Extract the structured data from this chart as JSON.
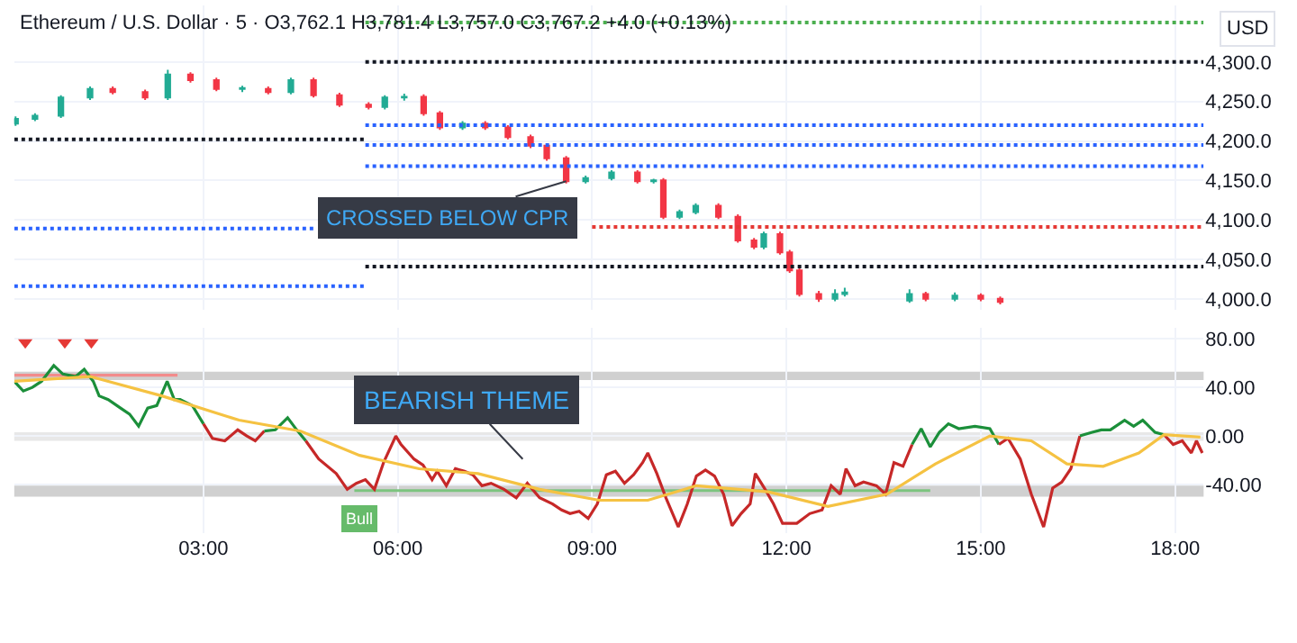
{
  "chart_data": [
    {
      "type": "candlestick",
      "title": "Ethereum / U.S. Dollar · 5 · O3,762.1 H3,781.4 L3,757.0 C3,767.2 +4.0 (+0.13%)",
      "ylabel": "USD",
      "x": [
        0.1,
        0.4,
        0.8,
        1.25,
        1.6,
        2.1,
        2.45,
        2.8,
        3.2,
        3.6,
        4.0,
        4.35,
        4.7,
        5.1,
        5.55,
        5.8,
        6.1,
        6.4,
        6.65,
        7.0,
        7.35,
        7.7,
        8.05,
        8.3,
        8.6,
        8.9,
        9.3,
        9.7,
        9.95,
        10.1,
        10.35,
        10.6,
        10.95,
        11.25,
        11.5,
        11.65,
        11.9,
        12.05,
        12.2,
        12.5,
        12.75,
        12.9,
        13.9,
        14.15,
        14.6,
        15.0,
        15.3
      ],
      "ohlc": [
        [
          4222,
          4231,
          4219,
          4228
        ],
        [
          4228,
          4235,
          4225,
          4232
        ],
        [
          4232,
          4258,
          4229,
          4255
        ],
        [
          4255,
          4269,
          4252,
          4266
        ],
        [
          4266,
          4269,
          4259,
          4262
        ],
        [
          4262,
          4265,
          4252,
          4255
        ],
        [
          4255,
          4290,
          4252,
          4284
        ],
        [
          4284,
          4287,
          4274,
          4277
        ],
        [
          4277,
          4280,
          4263,
          4266
        ],
        [
          4266,
          4270,
          4262,
          4267
        ],
        [
          4266,
          4269,
          4259,
          4262
        ],
        [
          4262,
          4280,
          4259,
          4277
        ],
        [
          4277,
          4280,
          4255,
          4258
        ],
        [
          4258,
          4261,
          4243,
          4246
        ],
        [
          4246,
          4249,
          4240,
          4243
        ],
        [
          4243,
          4258,
          4240,
          4255
        ],
        [
          4255,
          4260,
          4251,
          4256
        ],
        [
          4256,
          4259,
          4232,
          4235
        ],
        [
          4235,
          4238,
          4214,
          4217
        ],
        [
          4217,
          4225,
          4214,
          4222
        ],
        [
          4222,
          4225,
          4214,
          4217
        ],
        [
          4217,
          4220,
          4202,
          4205
        ],
        [
          4205,
          4208,
          4191,
          4194
        ],
        [
          4194,
          4197,
          4175,
          4178
        ],
        [
          4178,
          4181,
          4146,
          4149
        ],
        [
          4149,
          4156,
          4146,
          4153
        ],
        [
          4153,
          4163,
          4150,
          4160
        ],
        [
          4160,
          4163,
          4146,
          4149
        ],
        [
          4149,
          4152,
          4146,
          4150
        ],
        [
          4150,
          4153,
          4101,
          4104
        ],
        [
          4104,
          4113,
          4101,
          4110
        ],
        [
          4110,
          4121,
          4107,
          4118
        ],
        [
          4118,
          4121,
          4101,
          4104
        ],
        [
          4104,
          4107,
          4071,
          4074
        ],
        [
          4074,
          4077,
          4063,
          4066
        ],
        [
          4066,
          4085,
          4063,
          4082
        ],
        [
          4082,
          4085,
          4056,
          4059
        ],
        [
          4059,
          4062,
          4033,
          4036
        ],
        [
          4036,
          4039,
          4003,
          4006
        ],
        [
          4006,
          4010,
          3996,
          4000
        ],
        [
          4000,
          4012,
          3997,
          4006
        ],
        [
          4006,
          4014,
          4003,
          4008
        ],
        [
          3998,
          4012,
          3995,
          4006
        ],
        [
          4006,
          4009,
          3997,
          4000
        ],
        [
          4000,
          4008,
          3997,
          4004
        ],
        [
          4004,
          4007,
          3997,
          4000
        ],
        [
          4000,
          4003,
          3993,
          3996
        ]
      ],
      "colors": [
        "#22ab94",
        "#22ab94",
        "#22ab94",
        "#22ab94",
        "#f23645",
        "#f23645",
        "#22ab94",
        "#f23645",
        "#f23645",
        "#22ab94",
        "#f23645",
        "#22ab94",
        "#f23645",
        "#f23645",
        "#f23645",
        "#22ab94",
        "#22ab94",
        "#f23645",
        "#f23645",
        "#22ab94",
        "#f23645",
        "#f23645",
        "#f23645",
        "#f23645",
        "#f23645",
        "#22ab94",
        "#22ab94",
        "#f23645",
        "#22ab94",
        "#f23645",
        "#22ab94",
        "#22ab94",
        "#f23645",
        "#f23645",
        "#f23645",
        "#22ab94",
        "#f23645",
        "#f23645",
        "#f23645",
        "#f23645",
        "#22ab94",
        "#22ab94",
        "#22ab94",
        "#f23645",
        "#22ab94",
        "#f23645",
        "#f23645"
      ],
      "series": [
        {
          "type": "line",
          "color": "#131722",
          "x": [
            0.08,
            5.5
          ],
          "values": [
            4202,
            4202
          ],
          "line_style": "dotted"
        },
        {
          "type": "line",
          "color": "#2962ff",
          "x": [
            0.08,
            4.7
          ],
          "values": [
            4089,
            4089
          ],
          "line_style": "dotted"
        },
        {
          "type": "line",
          "color": "#2962ff",
          "x": [
            0.08,
            5.5
          ],
          "values": [
            4016,
            4016
          ],
          "line_style": "dotted"
        },
        {
          "type": "line",
          "color": "#4caf50",
          "x": [
            5.5,
            18.44
          ],
          "values": [
            4350,
            4350
          ],
          "line_style": "dotted"
        },
        {
          "type": "line",
          "color": "#131722",
          "x": [
            5.5,
            18.44
          ],
          "values": [
            4300,
            4300
          ],
          "line_style": "dotted"
        },
        {
          "type": "line",
          "color": "#2962ff",
          "x": [
            5.5,
            18.44
          ],
          "values": [
            4220,
            4220
          ],
          "line_style": "dotted"
        },
        {
          "type": "line",
          "color": "#2962ff",
          "x": [
            5.5,
            18.44
          ],
          "values": [
            4195,
            4195
          ],
          "line_style": "dotted"
        },
        {
          "type": "line",
          "color": "#2962ff",
          "x": [
            5.5,
            18.44
          ],
          "values": [
            4168,
            4168
          ],
          "line_style": "dotted"
        },
        {
          "type": "line",
          "color": "#e53935",
          "x": [
            9.0,
            18.44
          ],
          "values": [
            4091,
            4091
          ],
          "line_style": "dotted"
        },
        {
          "type": "line",
          "color": "#131722",
          "x": [
            5.5,
            18.44
          ],
          "values": [
            4041,
            4041
          ],
          "line_style": "dotted"
        }
      ],
      "annotations": [
        {
          "text": "CROSSED BELOW CPR",
          "x": 8.6,
          "y": 4149
        }
      ],
      "xlim": [
        0.08,
        18.44
      ],
      "xticks": [
        {
          "value": 3,
          "label": null
        },
        {
          "value": 6,
          "label": null
        },
        {
          "value": 9,
          "label": null
        },
        {
          "value": 12,
          "label": null
        },
        {
          "value": 15,
          "label": null
        },
        {
          "value": 18,
          "label": null
        }
      ],
      "ylim": [
        3986,
        4372
      ],
      "yticks": [
        {
          "value": 4000,
          "label": "4,000.0"
        },
        {
          "value": 4050,
          "label": "4,050.0"
        },
        {
          "value": 4100,
          "label": "4,100.0"
        },
        {
          "value": 4150,
          "label": "4,150.0"
        },
        {
          "value": 4200,
          "label": "4,200.0"
        },
        {
          "value": 4250,
          "label": "4,250.0"
        },
        {
          "value": 4300,
          "label": "4,300.0"
        }
      ],
      "tick_labels": "y",
      "grid": true
    },
    {
      "type": "line",
      "series": [
        {
          "color": "#f28b8b",
          "x": [
            0.08,
            2.6
          ],
          "values": [
            50,
            50
          ]
        },
        {
          "color": "#7cc47f",
          "x": [
            5.33,
            14.22
          ],
          "values": [
            -45,
            -45
          ]
        },
        {
          "color": "#1b8f3a",
          "x": [
            0.08,
            0.22,
            0.36,
            0.5,
            0.69,
            0.83,
            1.03,
            1.16,
            1.3,
            1.39,
            1.53,
            1.72,
            1.86,
            2.0,
            2.14,
            2.28,
            2.44,
            2.55,
            2.64,
            2.83,
            3.0
          ],
          "values": [
            45,
            37,
            40,
            45,
            58,
            51,
            49,
            55,
            45,
            33,
            30,
            23,
            18,
            8,
            23,
            25,
            45,
            30,
            30,
            25,
            10
          ]
        },
        {
          "color": "#c62828",
          "x": [
            3.0,
            3.14,
            3.33,
            3.53,
            3.67,
            3.8,
            3.94
          ],
          "values": [
            10,
            -2,
            -4,
            5,
            0,
            -4,
            4
          ]
        },
        {
          "color": "#1b8f3a",
          "x": [
            3.94,
            4.11,
            4.3,
            4.44,
            4.58
          ],
          "values": [
            4,
            5,
            15,
            5,
            -4
          ]
        },
        {
          "color": "#c62828",
          "x": [
            4.58,
            4.78,
            5.05,
            5.22,
            5.36,
            5.5,
            5.64,
            5.78,
            5.97,
            6.05,
            6.25,
            6.39,
            6.53,
            6.61,
            6.75,
            6.89,
            7.03,
            7.16,
            7.3,
            7.44,
            7.64,
            7.83,
            8.0,
            8.19,
            8.39,
            8.53,
            8.66,
            8.8,
            8.94,
            9.08,
            9.22,
            9.36,
            9.5,
            9.64,
            9.78,
            9.86,
            10.0,
            10.14,
            10.33,
            10.47,
            10.61,
            10.75,
            10.89,
            11.03,
            11.16,
            11.3,
            11.44,
            11.52,
            11.66,
            11.8,
            11.94,
            12.16,
            12.36,
            12.55,
            12.69,
            12.83,
            12.92,
            13.06,
            13.19,
            13.39,
            13.53,
            13.66,
            13.8,
            13.94
          ],
          "values": [
            -4,
            -19,
            -31,
            -44,
            -39,
            -36,
            -44,
            -22,
            0,
            -7,
            -19,
            -24,
            -36,
            -29,
            -41,
            -27,
            -29,
            -32,
            -41,
            -39,
            -44,
            -51,
            -39,
            -51,
            -56,
            -61,
            -64,
            -62,
            -68,
            -56,
            -32,
            -29,
            -39,
            -32,
            -22,
            -14,
            -31,
            -51,
            -75,
            -56,
            -33,
            -28,
            -33,
            -48,
            -74,
            -64,
            -56,
            -31,
            -43,
            -56,
            -72,
            -72,
            -64,
            -61,
            -41,
            -48,
            -27,
            -41,
            -38,
            -41,
            -48,
            -22,
            -25,
            -7
          ]
        },
        {
          "color": "#1b8f3a",
          "x": [
            13.94,
            14.08,
            14.22,
            14.36,
            14.5,
            14.66,
            14.91,
            15.14,
            15.28
          ],
          "values": [
            -7,
            6,
            -9,
            3,
            10,
            6,
            8,
            6,
            -7
          ]
        },
        {
          "color": "#c62828",
          "x": [
            15.28,
            15.42,
            15.61,
            15.78,
            15.97,
            16.11,
            16.25,
            16.39,
            16.53
          ],
          "values": [
            -7,
            -2,
            -19,
            -48,
            -75,
            -43,
            -38,
            -27,
            0
          ]
        },
        {
          "color": "#1b8f3a",
          "x": [
            16.53,
            16.72,
            16.86,
            17.0,
            17.22,
            17.36,
            17.5,
            17.69,
            17.83
          ],
          "values": [
            0,
            3,
            5,
            5,
            13,
            8,
            13,
            3,
            1
          ]
        },
        {
          "color": "#c62828",
          "x": [
            17.83,
            17.97,
            18.11,
            18.25,
            18.33,
            18.42
          ],
          "values": [
            1,
            -7,
            -4,
            -14,
            -4,
            -14
          ]
        },
        {
          "color": "#f5c242",
          "x": [
            0.08,
            1.25,
            2.36,
            3.55,
            4.5,
            5.41,
            6.33,
            7.24,
            8.19,
            9.11,
            9.86,
            10.61,
            11.72,
            12.64,
            13.55,
            14.3,
            15.14,
            15.78,
            16.33,
            16.89,
            17.44,
            17.83,
            18.39
          ],
          "values": [
            45,
            49,
            33,
            13,
            4,
            -16,
            -27,
            -31,
            -44,
            -53,
            -53,
            -41,
            -46,
            -58,
            -48,
            -23,
            0,
            -4,
            -23,
            -25,
            -14,
            1,
            -1
          ]
        },
        {
          "type": "scatter",
          "color": "#e53935",
          "marker": "triangle",
          "x": [
            0.25,
            0.86,
            1.27
          ],
          "values": [
            77,
            77,
            77
          ]
        }
      ],
      "bands": [
        {
          "axis": "y",
          "from": 46,
          "to": 53,
          "color": "#b0b0b0"
        },
        {
          "axis": "y",
          "from": -4,
          "to": 3,
          "color": "#d8d8d8"
        },
        {
          "axis": "y",
          "from": -50,
          "to": -41,
          "color": "#b0b0b0"
        }
      ],
      "annotations": [
        "BEARISH THEME",
        {
          "text": "Bull",
          "x": 5.4,
          "y": -45
        }
      ],
      "xlim": [
        0.08,
        18.44
      ],
      "xticks": [
        {
          "value": 3,
          "label": "03:00"
        },
        {
          "value": 6,
          "label": "06:00"
        },
        {
          "value": 9,
          "label": "09:00"
        },
        {
          "value": 12,
          "label": "12:00"
        },
        {
          "value": 15,
          "label": "15:00"
        },
        {
          "value": 18,
          "label": "18:00"
        }
      ],
      "ylim": [
        -80,
        89
      ],
      "yticks": [
        {
          "value": -40,
          "label": "-40.00"
        },
        {
          "value": 0,
          "label": "0.00"
        },
        {
          "value": 40,
          "label": "40.00"
        },
        {
          "value": 80,
          "label": "80.00"
        }
      ],
      "grid": true
    }
  ]
}
